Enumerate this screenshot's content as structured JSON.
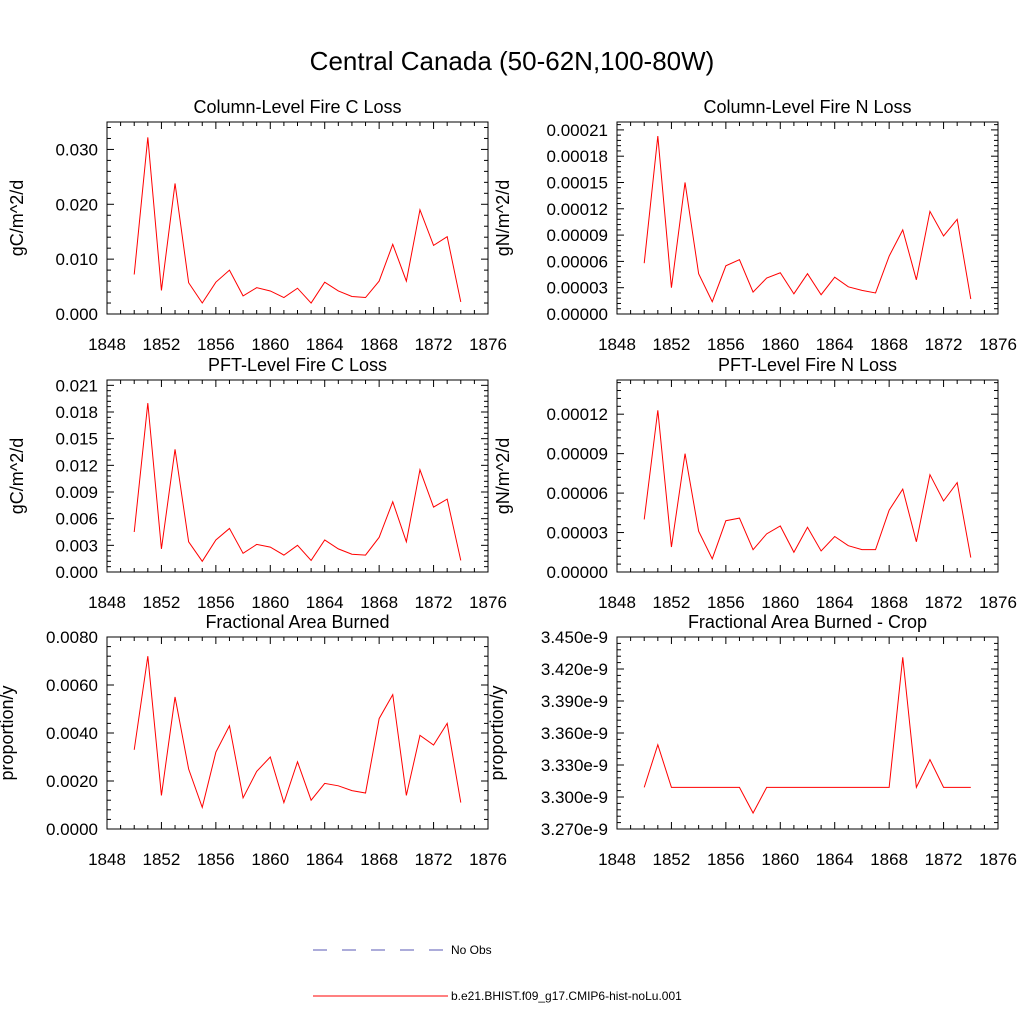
{
  "page": {
    "title": "Central Canada (50-62N,100-80W)"
  },
  "legend": {
    "entries": [
      {
        "label": "No Obs",
        "style": "dashed",
        "color": "#5a5ab4"
      },
      {
        "label": "b.e21.BHIST.f09_g17.CMIP6-hist-noLu.001",
        "style": "solid",
        "color": "#ff0000"
      }
    ]
  },
  "chart_data": [
    {
      "type": "line",
      "title": "Column-Level Fire C Loss",
      "ylabel": "gC/m^2/d",
      "xlim": [
        1848,
        1876
      ],
      "ylim": [
        0,
        0.035
      ],
      "x_ticks": [
        1848,
        1852,
        1856,
        1860,
        1864,
        1868,
        1872,
        1876
      ],
      "y_ticks": [
        0.0,
        0.01,
        0.02,
        0.03
      ],
      "y_tick_labels": [
        "0.000",
        "0.010",
        "0.020",
        "0.030"
      ],
      "series": [
        {
          "color": "#ff0000",
          "x": [
            1850,
            1851,
            1852,
            1853,
            1854,
            1855,
            1856,
            1857,
            1858,
            1859,
            1860,
            1861,
            1862,
            1863,
            1864,
            1865,
            1866,
            1867,
            1868,
            1869,
            1870,
            1871,
            1872,
            1873,
            1874
          ],
          "values": [
            0.0072,
            0.0322,
            0.0043,
            0.0238,
            0.0057,
            0.002,
            0.0058,
            0.008,
            0.0033,
            0.0048,
            0.0042,
            0.003,
            0.0047,
            0.002,
            0.0058,
            0.0042,
            0.0032,
            0.003,
            0.006,
            0.0127,
            0.006,
            0.019,
            0.0125,
            0.0141,
            0.0022
          ]
        }
      ]
    },
    {
      "type": "line",
      "title": "Column-Level Fire N Loss",
      "ylabel": "gN/m^2/d",
      "xlim": [
        1848,
        1876
      ],
      "ylim": [
        0,
        0.000219
      ],
      "x_ticks": [
        1848,
        1852,
        1856,
        1860,
        1864,
        1868,
        1872,
        1876
      ],
      "y_ticks": [
        0,
        3e-05,
        6e-05,
        9e-05,
        0.00012,
        0.00015,
        0.00018,
        0.00021
      ],
      "y_tick_labels": [
        "0.00000",
        "0.00003",
        "0.00006",
        "0.00009",
        "0.00012",
        "0.00015",
        "0.00018",
        "0.00021"
      ],
      "series": [
        {
          "color": "#ff0000",
          "x": [
            1850,
            1851,
            1852,
            1853,
            1854,
            1855,
            1856,
            1857,
            1858,
            1859,
            1860,
            1861,
            1862,
            1863,
            1864,
            1865,
            1866,
            1867,
            1868,
            1869,
            1870,
            1871,
            1872,
            1873,
            1874
          ],
          "values": [
            5.8e-05,
            0.000203,
            3e-05,
            0.00015,
            4.6e-05,
            1.4e-05,
            5.5e-05,
            6.2e-05,
            2.5e-05,
            4.1e-05,
            4.7e-05,
            2.3e-05,
            4.6e-05,
            2.2e-05,
            4.2e-05,
            3.1e-05,
            2.7e-05,
            2.4e-05,
            6.6e-05,
            9.6e-05,
            3.9e-05,
            0.000117,
            8.9e-05,
            0.000108,
            1.7e-05
          ]
        }
      ]
    },
    {
      "type": "line",
      "title": "PFT-Level Fire C Loss",
      "ylabel": "gC/m^2/d",
      "xlim": [
        1848,
        1876
      ],
      "ylim": [
        0,
        0.0216
      ],
      "x_ticks": [
        1848,
        1852,
        1856,
        1860,
        1864,
        1868,
        1872,
        1876
      ],
      "y_ticks": [
        0,
        0.003,
        0.006,
        0.009,
        0.012,
        0.015,
        0.018,
        0.021
      ],
      "y_tick_labels": [
        "0.000",
        "0.003",
        "0.006",
        "0.009",
        "0.012",
        "0.015",
        "0.018",
        "0.021"
      ],
      "series": [
        {
          "color": "#ff0000",
          "x": [
            1850,
            1851,
            1852,
            1853,
            1854,
            1855,
            1856,
            1857,
            1858,
            1859,
            1860,
            1861,
            1862,
            1863,
            1864,
            1865,
            1866,
            1867,
            1868,
            1869,
            1870,
            1871,
            1872,
            1873,
            1874
          ],
          "values": [
            0.0045,
            0.019,
            0.0026,
            0.0138,
            0.0034,
            0.0012,
            0.0036,
            0.0049,
            0.0021,
            0.0031,
            0.0028,
            0.0019,
            0.003,
            0.0013,
            0.0036,
            0.0026,
            0.002,
            0.0019,
            0.0039,
            0.0079,
            0.0034,
            0.0115,
            0.0073,
            0.0082,
            0.0013
          ]
        }
      ]
    },
    {
      "type": "line",
      "title": "PFT-Level Fire N Loss",
      "ylabel": "gN/m^2/d",
      "xlim": [
        1848,
        1876
      ],
      "ylim": [
        0,
        0.000146
      ],
      "x_ticks": [
        1848,
        1852,
        1856,
        1860,
        1864,
        1868,
        1872,
        1876
      ],
      "y_ticks": [
        0,
        3e-05,
        6e-05,
        9e-05,
        0.00012
      ],
      "y_tick_labels": [
        "0.00000",
        "0.00003",
        "0.00006",
        "0.00009",
        "0.00012"
      ],
      "series": [
        {
          "color": "#ff0000",
          "x": [
            1850,
            1851,
            1852,
            1853,
            1854,
            1855,
            1856,
            1857,
            1858,
            1859,
            1860,
            1861,
            1862,
            1863,
            1864,
            1865,
            1866,
            1867,
            1868,
            1869,
            1870,
            1871,
            1872,
            1873,
            1874
          ],
          "values": [
            4e-05,
            0.000123,
            1.9e-05,
            9e-05,
            3.1e-05,
            1e-05,
            3.9e-05,
            4.1e-05,
            1.7e-05,
            2.9e-05,
            3.5e-05,
            1.5e-05,
            3.4e-05,
            1.6e-05,
            2.7e-05,
            2e-05,
            1.7e-05,
            1.7e-05,
            4.7e-05,
            6.3e-05,
            2.3e-05,
            7.4e-05,
            5.4e-05,
            6.8e-05,
            1.1e-05
          ]
        }
      ]
    },
    {
      "type": "line",
      "title": "Fractional Area Burned",
      "ylabel": "proportion/y",
      "xlim": [
        1848,
        1876
      ],
      "ylim": [
        0,
        0.008
      ],
      "x_ticks": [
        1848,
        1852,
        1856,
        1860,
        1864,
        1868,
        1872,
        1876
      ],
      "y_ticks": [
        0,
        0.002,
        0.004,
        0.006,
        0.008
      ],
      "y_tick_labels": [
        "0.0000",
        "0.0020",
        "0.0040",
        "0.0060",
        "0.0080"
      ],
      "series": [
        {
          "color": "#ff0000",
          "x": [
            1850,
            1851,
            1852,
            1853,
            1854,
            1855,
            1856,
            1857,
            1858,
            1859,
            1860,
            1861,
            1862,
            1863,
            1864,
            1865,
            1866,
            1867,
            1868,
            1869,
            1870,
            1871,
            1872,
            1873,
            1874
          ],
          "values": [
            0.0033,
            0.0072,
            0.0014,
            0.0055,
            0.0025,
            0.0009,
            0.0032,
            0.0043,
            0.0013,
            0.0024,
            0.003,
            0.0011,
            0.0028,
            0.0012,
            0.0019,
            0.0018,
            0.0016,
            0.0015,
            0.0046,
            0.0056,
            0.0014,
            0.0039,
            0.0035,
            0.0044,
            0.0011
          ]
        }
      ]
    },
    {
      "type": "line",
      "title": "Fractional Area Burned - Crop",
      "ylabel": "proportion/y",
      "xlim": [
        1848,
        1876
      ],
      "ylim": [
        3.27e-09,
        3.45e-09
      ],
      "x_ticks": [
        1848,
        1852,
        1856,
        1860,
        1864,
        1868,
        1872,
        1876
      ],
      "y_ticks": [
        3.27e-09,
        3.3e-09,
        3.33e-09,
        3.36e-09,
        3.39e-09,
        3.42e-09,
        3.45e-09
      ],
      "y_tick_labels": [
        "3.270e-9",
        "3.300e-9",
        "3.330e-9",
        "3.360e-9",
        "3.390e-9",
        "3.420e-9",
        "3.450e-9"
      ],
      "series": [
        {
          "color": "#ff0000",
          "x": [
            1850,
            1851,
            1852,
            1853,
            1854,
            1855,
            1856,
            1857,
            1858,
            1859,
            1860,
            1861,
            1862,
            1863,
            1864,
            1865,
            1866,
            1867,
            1868,
            1869,
            1870,
            1871,
            1872,
            1873,
            1874
          ],
          "values": [
            3.309e-09,
            3.349e-09,
            3.309e-09,
            3.309e-09,
            3.309e-09,
            3.309e-09,
            3.309e-09,
            3.309e-09,
            3.285e-09,
            3.309e-09,
            3.309e-09,
            3.309e-09,
            3.309e-09,
            3.309e-09,
            3.309e-09,
            3.309e-09,
            3.309e-09,
            3.309e-09,
            3.309e-09,
            3.431e-09,
            3.309e-09,
            3.335e-09,
            3.309e-09,
            3.309e-09,
            3.309e-09
          ]
        }
      ]
    }
  ]
}
